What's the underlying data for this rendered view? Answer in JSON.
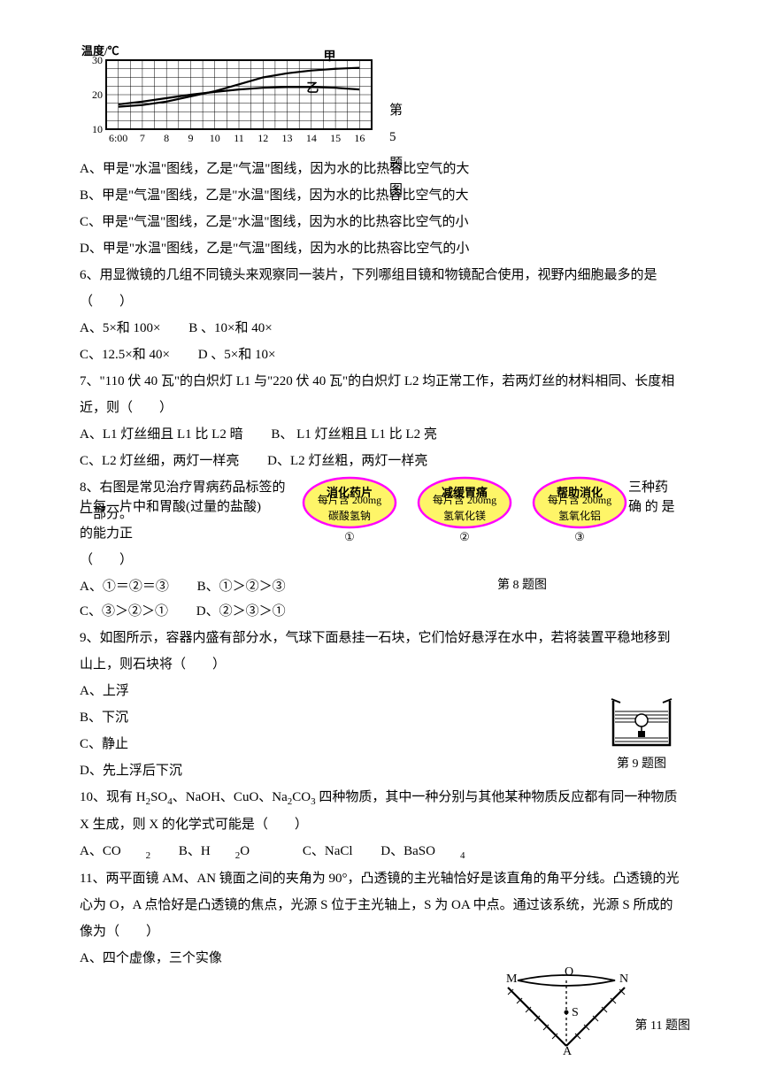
{
  "chart5": {
    "yaxis_label": "温度/℃",
    "ylim": [
      10,
      30
    ],
    "yticks": [
      10,
      20,
      30
    ],
    "xlim": [
      5.5,
      16.5
    ],
    "xticks": [
      "6:00",
      "7",
      "8",
      "9",
      "10",
      "11",
      "12",
      "13",
      "14",
      "15",
      "16"
    ],
    "curve_jia_label": "甲",
    "curve_yi_label": "乙",
    "curve_jia": [
      [
        6,
        16.5
      ],
      [
        7,
        17
      ],
      [
        8,
        18
      ],
      [
        9,
        19.5
      ],
      [
        10,
        21
      ],
      [
        11,
        23
      ],
      [
        12,
        25
      ],
      [
        13,
        26.2
      ],
      [
        14,
        27
      ],
      [
        15,
        27.5
      ],
      [
        16,
        27.8
      ]
    ],
    "curve_yi": [
      [
        6,
        17.2
      ],
      [
        7,
        18
      ],
      [
        8,
        19
      ],
      [
        9,
        20
      ],
      [
        10,
        20.8
      ],
      [
        11,
        21.5
      ],
      [
        12,
        22
      ],
      [
        13,
        22.2
      ],
      [
        14,
        22.2
      ],
      [
        15,
        22
      ],
      [
        16,
        21.5
      ]
    ],
    "line_color": "#000000",
    "grid_color": "#000000",
    "caption": "第 5 题图"
  },
  "q5": {
    "A": "A、甲是\"水温\"图线，乙是\"气温\"图线，因为水的比热容比空气的大",
    "B": "B、甲是\"气温\"图线，乙是\"水温\"图线，因为水的比热容比空气的大",
    "C": "C、甲是\"气温\"图线，乙是\"水温\"图线，因为水的比热容比空气的小",
    "D": "D、甲是\"水温\"图线，乙是\"气温\"图线，因为水的比热容比空气的小"
  },
  "q6": {
    "stem": "6、用显微镜的几组不同镜头来观察同一装片，下列哪组目镜和物镜配合使用，视野内细胞最多的是（　　）",
    "A": "A、5×和 100×",
    "B": "B 、10×和 40×",
    "C": "C、12.5×和 40×",
    "D": "D 、5×和 10×"
  },
  "q7": {
    "stem": "7、\"110 伏 40 瓦\"的白炽灯 L1 与\"220 伏 40 瓦\"的白炽灯 L2 均正常工作，若两灯丝的材料相同、长度相近，则（　　）",
    "A": "A、L1 灯丝细且 L1 比 L2 暗",
    "B": "B、 L1 灯丝粗且 L1 比 L2 亮",
    "C": "C、L2 灯丝细，两灯一样亮",
    "D": "D、L2 灯丝粗，两灯一样亮"
  },
  "q8": {
    "stem_left": "8、右图是常见治疗胃病药品标签的一部分。",
    "stem_right": "三种药",
    "line2_left": "片每一片中和胃酸(过量的盐酸)的能力正",
    "line2_right": "确 的 是",
    "line3": "（　　）",
    "pills": [
      {
        "title": "消化药片",
        "body": "每片含 200mg",
        "body2": "碳酸氢钠",
        "num": "①"
      },
      {
        "title": "减缓胃痛",
        "body": "每片含 200mg",
        "body2": "氢氧化镁",
        "num": "②"
      },
      {
        "title": "帮助消化",
        "body": "每片含 200mg",
        "body2": "氢氧化铝",
        "num": "③"
      }
    ],
    "pill_fill": "#fef568",
    "pill_stroke": "#ff00ff",
    "caption": "第 8 题图",
    "A": "A、①＝②＝③",
    "B": "B、①＞②＞③",
    "C": "C、③＞②＞①",
    "D": "D、②＞③＞①"
  },
  "q9": {
    "stem": "9、如图所示，容器内盛有部分水，气球下面悬挂一石块，它们恰好悬浮在水中，若将装置平稳地移到山上，则石块将（　　）",
    "A": "A、上浮",
    "B": "B、下沉",
    "C": "C、静止",
    "D": "D、先上浮后下沉",
    "caption": "第 9 题图"
  },
  "q10": {
    "stem_parts": [
      "10、现有 H",
      "2",
      "SO",
      "4",
      "、NaOH、CuO、Na",
      "2",
      "CO",
      "3",
      " 四种物质，其中一种分别与其他某种物质反应都有同一种物质 X 生成，则 X 的化学式可能是（　　）"
    ],
    "A_parts": [
      "A、CO",
      "2"
    ],
    "B_parts": [
      "B、H",
      "2",
      "O"
    ],
    "C": "C、NaCl",
    "D_parts": [
      "D、BaSO",
      "4"
    ]
  },
  "q11": {
    "stem": "11、两平面镜 AM、AN 镜面之间的夹角为 90°，凸透镜的主光轴恰好是该直角的角平分线。凸透镜的光心为 O，A 点恰好是凸透镜的焦点，光源 S 位于主光轴上，S 为 OA 中点。通过该系统，光源 S 所成的像为（　　）",
    "A": "A、四个虚像，三个实像",
    "labels": {
      "M": "M",
      "O": "O",
      "N": "N",
      "S": "S",
      "A": "A"
    },
    "caption": "第 11 题图"
  }
}
